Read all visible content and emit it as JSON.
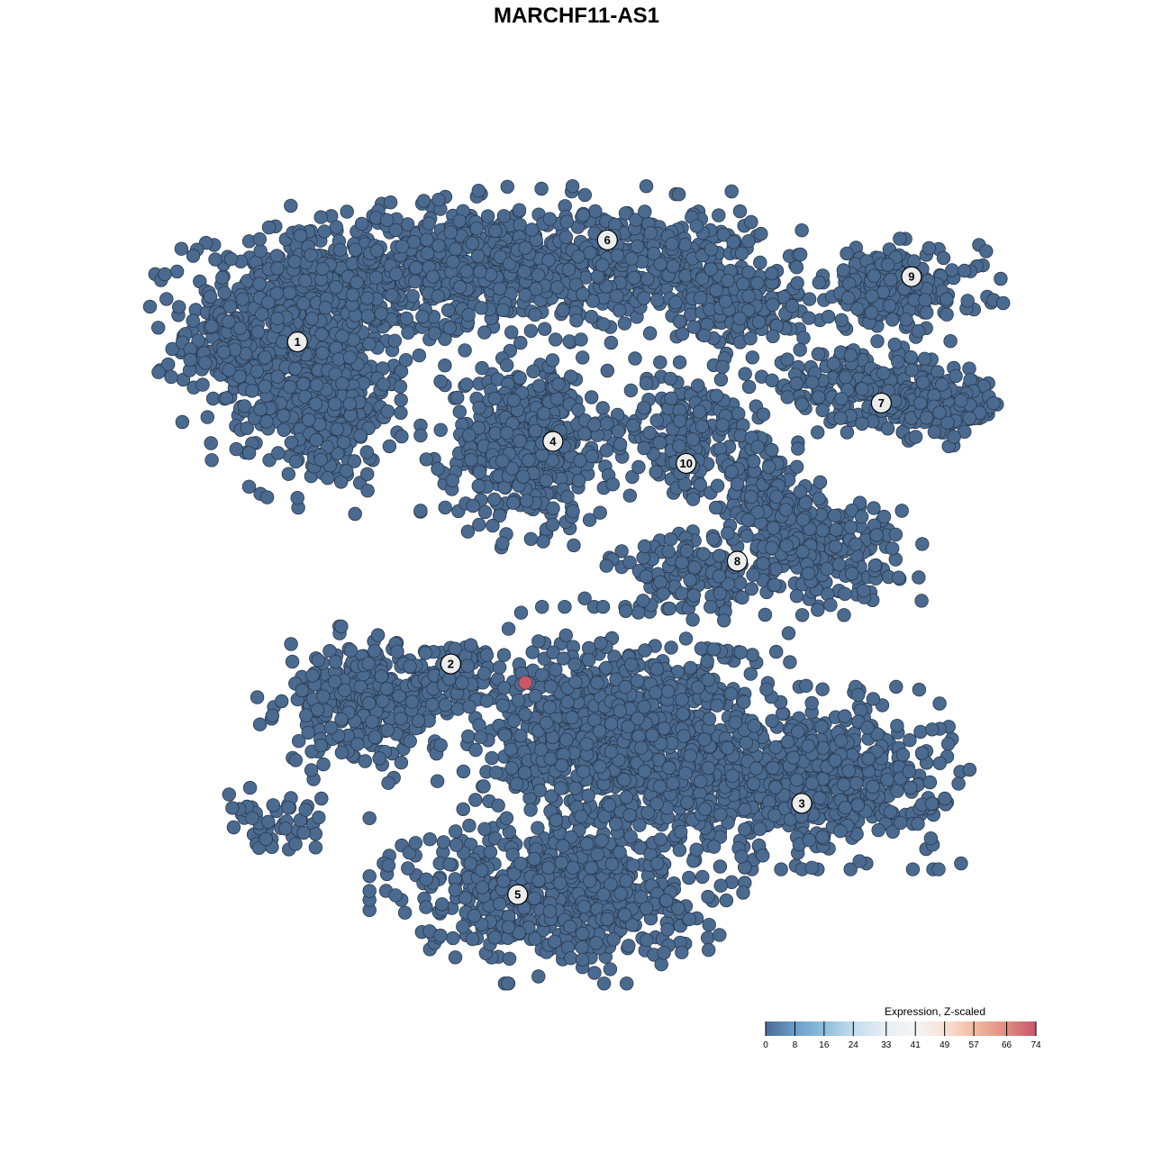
{
  "chart_data": {
    "type": "scatter",
    "title": "MARCHF11-AS1",
    "xlabel": "",
    "ylabel": "",
    "axes_visible": false,
    "grid": false,
    "point_color_default": "#4a6a8f",
    "point_stroke": "#2b3a4f",
    "clusters": [
      {
        "label": "1",
        "center": [
          14,
          78.5
        ],
        "blobs": [
          {
            "c": [
              14,
              80
            ],
            "s": [
              11,
              10
            ],
            "n": 700
          },
          {
            "c": [
              17,
              70
            ],
            "s": [
              7,
              8
            ],
            "n": 250
          },
          {
            "c": [
              6,
              77
            ],
            "s": [
              3,
              4
            ],
            "n": 40
          }
        ]
      },
      {
        "label": "6",
        "center": [
          51,
          91
        ],
        "blobs": [
          {
            "c": [
              34,
              88
            ],
            "s": [
              14,
              6
            ],
            "n": 550
          },
          {
            "c": [
              55,
              88
            ],
            "s": [
              12,
              6
            ],
            "n": 400
          },
          {
            "c": [
              68,
              83
            ],
            "s": [
              6,
              4
            ],
            "n": 120
          }
        ]
      },
      {
        "label": "4",
        "center": [
          44.5,
          66.3
        ],
        "blobs": [
          {
            "c": [
              41.5,
              66
            ],
            "s": [
              8,
              8
            ],
            "n": 500
          }
        ]
      },
      {
        "label": "9",
        "center": [
          87.3,
          86.5
        ],
        "blobs": [
          {
            "c": [
              85,
              85
            ],
            "s": [
              9,
              4
            ],
            "n": 220
          }
        ]
      },
      {
        "label": "7",
        "center": [
          83.7,
          71
        ],
        "blobs": [
          {
            "c": [
              81,
              73
            ],
            "s": [
              10,
              3.5
            ],
            "n": 200
          },
          {
            "c": [
              91,
              70.5
            ],
            "s": [
              6,
              3
            ],
            "n": 150
          }
        ]
      },
      {
        "label": "10",
        "center": [
          60.4,
          63.6
        ],
        "blobs": [
          {
            "c": [
              60.5,
              68
            ],
            "s": [
              6,
              5
            ],
            "n": 150
          },
          {
            "c": [
              60,
              64
            ],
            "s": [
              2,
              3
            ],
            "n": 40
          }
        ]
      },
      {
        "label": "8",
        "center": [
          66.5,
          51.6
        ],
        "blobs": [
          {
            "c": [
              76,
              53
            ],
            "s": [
              8,
              5
            ],
            "n": 250
          },
          {
            "c": [
              70,
              60
            ],
            "s": [
              4,
              6
            ],
            "n": 150
          },
          {
            "c": [
              61,
              50
            ],
            "s": [
              8,
              4
            ],
            "n": 130
          }
        ]
      },
      {
        "label": "2",
        "center": [
          32.3,
          39
        ],
        "blobs": [
          {
            "c": [
              22,
              34
            ],
            "s": [
              8,
              6
            ],
            "n": 300
          },
          {
            "c": [
              32,
              38
            ],
            "s": [
              5,
              3
            ],
            "n": 80
          }
        ]
      },
      {
        "label": "3",
        "center": [
          74.2,
          21.9
        ],
        "blobs": [
          {
            "c": [
              75,
              25
            ],
            "s": [
              13,
              7
            ],
            "n": 650
          }
        ]
      },
      {
        "label": "5",
        "center": [
          40.3,
          10.7
        ],
        "blobs": [
          {
            "c": [
              45,
              11
            ],
            "s": [
              14,
              7
            ],
            "n": 650
          },
          {
            "c": [
              53,
              30
            ],
            "s": [
              14,
              10
            ],
            "n": 1000
          },
          {
            "c": [
              12,
              19
            ],
            "s": [
              5,
              3
            ],
            "n": 50
          }
        ]
      }
    ],
    "highlighted_points": [
      {
        "x": 41.2,
        "y": 36.7,
        "value": 74,
        "color": "#c85a66"
      }
    ],
    "legend": {
      "title": "Expression, Z-scaled",
      "placement": "bottom-right",
      "ticks": [
        "0",
        "8",
        "16",
        "24",
        "33",
        "41",
        "49",
        "57",
        "66",
        "74"
      ],
      "range": [
        0,
        74
      ],
      "colors": [
        "#4b6b93",
        "#6a9fcc",
        "#8fc0dc",
        "#c5dfec",
        "#e6eef4",
        "#f5f5f5",
        "#f9e0d4",
        "#f2b89e",
        "#e28c80",
        "#c9566a"
      ]
    }
  }
}
